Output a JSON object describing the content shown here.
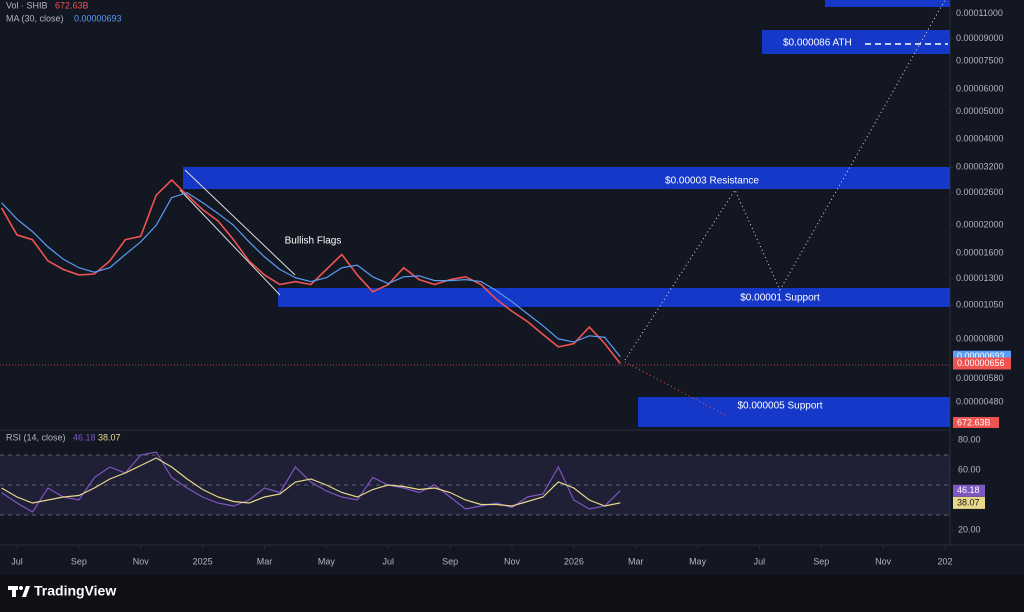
{
  "chart_data": [
    {
      "type": "line",
      "log_scale": true,
      "grid": false,
      "volume_name": "Vol · SHIB",
      "volume_label": "672.63B",
      "x": [
        -0.5,
        0,
        0.5,
        1,
        1.5,
        2,
        2.5,
        3,
        3.5,
        4,
        4.5,
        5,
        5.5,
        6,
        6.5,
        7,
        7.5,
        8,
        8.5,
        9,
        9.5,
        10,
        10.5,
        11,
        11.5,
        12,
        12.5,
        13,
        13.5,
        14,
        14.5,
        15,
        15.5,
        16,
        16.5,
        17,
        17.5,
        18,
        18.5,
        19,
        19.5
      ],
      "xlim": [
        -0.55,
        30.16
      ],
      "xticks": [
        {
          "value": 0,
          "label": "Jul"
        },
        {
          "value": 2,
          "label": "Sep"
        },
        {
          "value": 4,
          "label": "Nov"
        },
        {
          "value": 6,
          "label": "2025"
        },
        {
          "value": 8,
          "label": "Mar"
        },
        {
          "value": 10,
          "label": "May"
        },
        {
          "value": 12,
          "label": "Jul"
        },
        {
          "value": 14,
          "label": "Sep"
        },
        {
          "value": 16,
          "label": "Nov"
        },
        {
          "value": 18,
          "label": "2026"
        },
        {
          "value": 20,
          "label": "Mar"
        },
        {
          "value": 22,
          "label": "May"
        },
        {
          "value": 24,
          "label": "Jul"
        },
        {
          "value": 26,
          "label": "Sep"
        },
        {
          "value": 28,
          "label": "Nov"
        },
        {
          "value": 30,
          "label": "202"
        }
      ],
      "ylim": [
        3.9e-06,
        0.000123
      ],
      "yticks": [
        {
          "value": 0.00011,
          "label": "0.00011000"
        },
        {
          "value": 9e-05,
          "label": "0.00009000"
        },
        {
          "value": 7.5e-05,
          "label": "0.00007500"
        },
        {
          "value": 6e-05,
          "label": "0.00006000"
        },
        {
          "value": 5e-05,
          "label": "0.00005000"
        },
        {
          "value": 4e-05,
          "label": "0.00004000"
        },
        {
          "value": 3.2e-05,
          "label": "0.00003200"
        },
        {
          "value": 2.6e-05,
          "label": "0.00002600"
        },
        {
          "value": 2e-05,
          "label": "0.00002000"
        },
        {
          "value": 1.6e-05,
          "label": "0.00001600"
        },
        {
          "value": 1.3e-05,
          "label": "0.00001300"
        },
        {
          "value": 1.05e-05,
          "label": "0.00001050"
        },
        {
          "value": 8e-06,
          "label": "0.00000800"
        },
        {
          "value": 5.8e-06,
          "label": "0.00000580"
        },
        {
          "value": 4.8e-06,
          "label": "0.00000480"
        }
      ],
      "series": [
        {
          "color": "#ef5350",
          "values": [
            2.3e-05,
            1.85e-05,
            1.78e-05,
            1.5e-05,
            1.4e-05,
            1.34e-05,
            1.35e-05,
            1.5e-05,
            1.78e-05,
            1.83e-05,
            2.55e-05,
            2.88e-05,
            2.55e-05,
            2.27e-05,
            2.07e-05,
            1.78e-05,
            1.5e-05,
            1.34e-05,
            1.24e-05,
            1.27e-05,
            1.24e-05,
            1.4e-05,
            1.58e-05,
            1.34e-05,
            1.17e-05,
            1.24e-05,
            1.42e-05,
            1.29e-05,
            1.24e-05,
            1.29e-05,
            1.32e-05,
            1.24e-05,
            1.1e-05,
            1e-05,
            9.2e-06,
            8.3e-06,
            7.5e-06,
            7.7e-06,
            8.8e-06,
            7.7e-06,
            6.56e-06
          ],
          "value_labels": [
            null,
            null,
            null,
            null,
            null,
            null,
            null,
            null,
            null,
            null,
            null,
            null,
            null,
            null,
            null,
            null,
            null,
            null,
            null,
            null,
            null,
            null,
            null,
            null,
            null,
            null,
            null,
            null,
            null,
            null,
            null,
            null,
            null,
            null,
            null,
            null,
            null,
            null,
            null,
            null,
            "0.00000656"
          ]
        },
        {
          "name": "MA (30, close)",
          "color": "#5b9cf6",
          "values": [
            2.4e-05,
            2.1e-05,
            1.9e-05,
            1.68e-05,
            1.52e-05,
            1.42e-05,
            1.37e-05,
            1.42e-05,
            1.58e-05,
            1.75e-05,
            2e-05,
            2.5e-05,
            2.6e-05,
            2.4e-05,
            2.2e-05,
            2e-05,
            1.75e-05,
            1.55e-05,
            1.4e-05,
            1.31e-05,
            1.27e-05,
            1.31e-05,
            1.42e-05,
            1.45e-05,
            1.32e-05,
            1.25e-05,
            1.32e-05,
            1.33e-05,
            1.28e-05,
            1.28e-05,
            1.29e-05,
            1.27e-05,
            1.18e-05,
            1.08e-05,
            9.8e-06,
            8.9e-06,
            8e-06,
            7.8e-06,
            8.2e-06,
            8.1e-06,
            6.93e-06
          ],
          "value_labels": [
            null,
            null,
            null,
            null,
            null,
            null,
            null,
            null,
            null,
            null,
            null,
            null,
            null,
            null,
            null,
            null,
            null,
            null,
            null,
            null,
            null,
            null,
            null,
            null,
            null,
            null,
            null,
            null,
            null,
            null,
            null,
            null,
            null,
            null,
            null,
            null,
            null,
            null,
            null,
            null,
            "0.00000693"
          ]
        }
      ],
      "annotations": [
        "$0.000086 ATH",
        "$0.00003 Resistance",
        "$0.00001 Support",
        "$0.000005 Support",
        "Bullish Flags"
      ]
    },
    {
      "type": "line",
      "grid": false,
      "ylim": [
        10,
        85.33
      ],
      "bands": [
        30,
        50,
        70
      ],
      "yticks": [
        {
          "value": 80,
          "label": "80.00"
        },
        {
          "value": 60,
          "label": "60.00"
        },
        {
          "value": 20,
          "label": "20.00"
        }
      ],
      "series": [
        {
          "name": "RSI (14, close)",
          "color": "#7e57c2",
          "values": [
            45,
            38,
            32,
            48,
            42,
            40,
            55,
            62,
            58,
            70,
            72,
            55,
            48,
            42,
            38,
            36,
            40,
            48,
            45,
            62,
            52,
            46,
            42,
            40,
            55,
            50,
            48,
            45,
            50,
            42,
            34,
            36,
            38,
            35,
            42,
            44,
            62,
            40,
            34,
            36,
            46.18
          ]
        },
        {
          "color": "#e8d98a",
          "values": [
            48,
            42,
            38,
            40,
            42,
            43,
            48,
            54,
            58,
            63,
            68,
            62,
            54,
            47,
            42,
            39,
            38,
            42,
            44,
            52,
            54,
            50,
            45,
            42,
            47,
            50,
            49,
            47,
            48,
            45,
            40,
            37,
            37,
            36,
            39,
            42,
            52,
            48,
            40,
            36,
            38.07
          ]
        }
      ]
    }
  ],
  "footer": {
    "brand": "TradingView"
  }
}
